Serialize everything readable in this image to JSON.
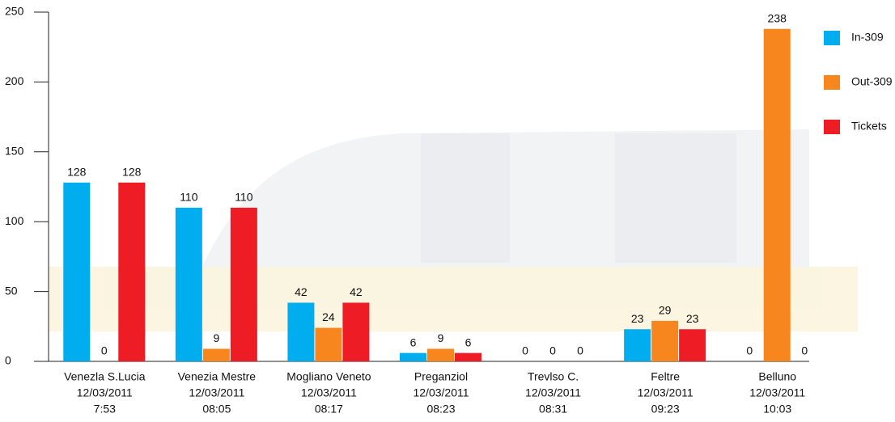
{
  "chart_data": {
    "type": "bar",
    "categories": [
      [
        "Venezla S.Lucia",
        "12/03/2011",
        "7:53"
      ],
      [
        "Venezia Mestre",
        "12/03/2011",
        "08:05"
      ],
      [
        "Mogliano Veneto",
        "12/03/2011",
        "08:17"
      ],
      [
        "Preganziol",
        "12/03/2011",
        "08:23"
      ],
      [
        "Trevlso C.",
        "12/03/2011",
        "08:31"
      ],
      [
        "Feltre",
        "12/03/2011",
        "09:23"
      ],
      [
        "Belluno",
        "12/03/2011",
        "10:03"
      ]
    ],
    "series": [
      {
        "name": "In-309",
        "color": "#00aeef",
        "values": [
          128,
          110,
          42,
          6,
          0,
          23,
          0
        ]
      },
      {
        "name": "Out-309",
        "color": "#f7861e",
        "values": [
          0,
          9,
          24,
          9,
          0,
          29,
          238
        ]
      },
      {
        "name": "Tickets",
        "color": "#ee1c25",
        "values": [
          128,
          110,
          42,
          6,
          0,
          23,
          0
        ]
      }
    ],
    "ylim": [
      0,
      250
    ],
    "yticks": [
      0,
      50,
      100,
      150,
      200,
      250
    ],
    "legend": "top-right"
  }
}
